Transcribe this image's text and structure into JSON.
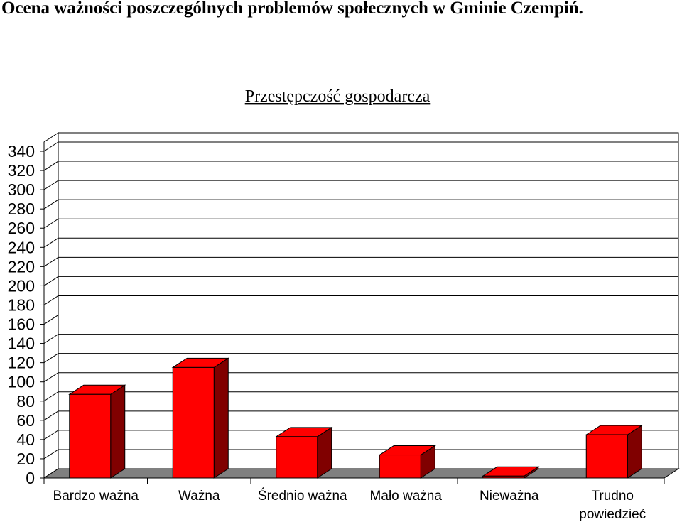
{
  "page_title": "Ocena ważności poszczególnych problemów społecznych w Gminie Czempiń.",
  "chart_data": {
    "type": "bar",
    "title": "Przestępczość gospodarcza",
    "categories": [
      "Bardzo ważna",
      "Ważna",
      "Średnio ważna",
      "Mało ważna",
      "Nieważna",
      "Trudno powiedzieć"
    ],
    "category_lines": [
      [
        "Bardzo ważna"
      ],
      [
        "Ważna"
      ],
      [
        "Średnio ważna"
      ],
      [
        "Mało ważna"
      ],
      [
        "Nieważna"
      ],
      [
        "Trudno",
        "powiedzieć"
      ]
    ],
    "values": [
      87,
      115,
      43,
      24,
      2,
      45
    ],
    "ylim": [
      0,
      340
    ],
    "yticks": [
      0,
      20,
      40,
      60,
      80,
      100,
      120,
      140,
      160,
      180,
      200,
      220,
      240,
      260,
      280,
      300,
      320,
      340
    ],
    "grid": true,
    "legend": "none",
    "bar_color": "#ff0000",
    "bar_side_color": "#800000",
    "floor_color": "#808080"
  }
}
